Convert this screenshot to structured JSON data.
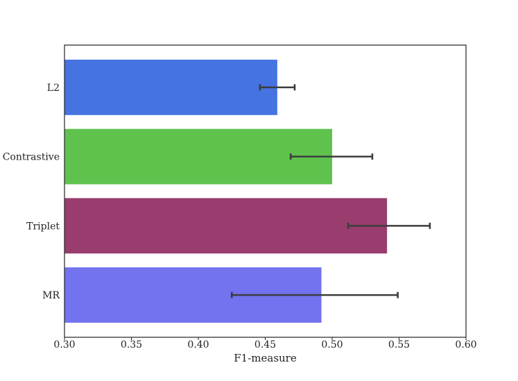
{
  "chart_data": {
    "type": "bar",
    "orientation": "horizontal",
    "title": "",
    "xlabel": "F1-measure",
    "ylabel": "",
    "xlim": [
      0.3,
      0.6
    ],
    "xticks": [
      "0.30",
      "0.35",
      "0.40",
      "0.45",
      "0.50",
      "0.55",
      "0.60"
    ],
    "categories": [
      "L2",
      "Contrastive",
      "Triplet",
      "MR"
    ],
    "values": [
      0.459,
      0.5,
      0.541,
      0.492
    ],
    "error_low": [
      0.446,
      0.469,
      0.512,
      0.425
    ],
    "error_high": [
      0.472,
      0.53,
      0.573,
      0.549
    ],
    "colors": [
      "#4573e2",
      "#5fc24d",
      "#993d6e",
      "#7373ef"
    ],
    "error_bar_color": "#3c3c3c",
    "grid": false,
    "legend": "none"
  }
}
